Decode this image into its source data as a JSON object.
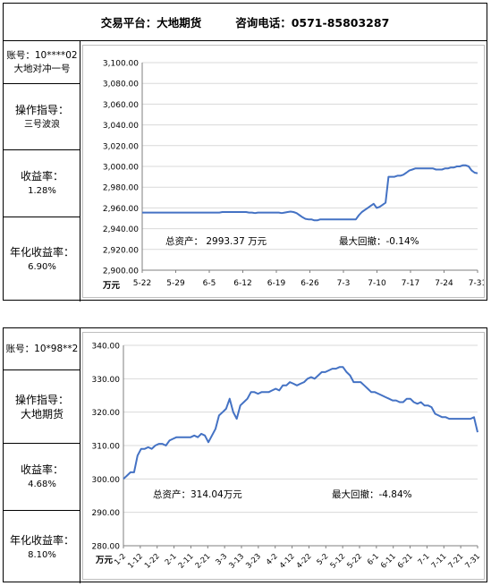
{
  "header": {
    "platform": "交易平台：大地期货",
    "phone": "咨询电话：0571-85803287"
  },
  "accounts": [
    {
      "account_label": "账号：10****02",
      "account_name": "大地对冲一号",
      "instruction_label": "操作指导：",
      "instruction_value": "三号波浪",
      "return_label": "收益率：",
      "return_value": "1.28%",
      "annual_label": "年化收益率：",
      "annual_value": "6.90%"
    },
    {
      "account_label": "账号：10*98**2",
      "account_name": "",
      "instruction_label": "操作指导：",
      "instruction_value": "大地期货",
      "return_label": "收益率：",
      "return_value": "4.68%",
      "annual_label": "年化收益率：",
      "annual_value": "8.10%"
    }
  ],
  "chart_data": [
    {
      "type": "line",
      "title": "",
      "xlabel": "",
      "ylabel": "万元",
      "ylim": [
        2900,
        3100
      ],
      "yticks": [
        2900,
        2920,
        2940,
        2960,
        2980,
        3000,
        3020,
        3040,
        3060,
        3080,
        3100
      ],
      "ytick_labels": [
        "2,900.00",
        "2,920.00",
        "2,940.00",
        "2,960.00",
        "2,980.00",
        "3,000.00",
        "3,020.00",
        "3,040.00",
        "3,060.00",
        "3,080.00",
        "3,100.00"
      ],
      "x_tick_labels": [
        "5-22",
        "5-29",
        "6-5",
        "6-12",
        "6-19",
        "6-26",
        "7-3",
        "7-10",
        "7-17",
        "7-24",
        "7-31"
      ],
      "grid": true,
      "line_color": "#4472C4",
      "series": [
        {
          "values": [
            2955.5,
            2955.5,
            2955.5,
            2955.5,
            2955.5,
            2955.5,
            2955.5,
            2955.5,
            2955.5,
            2955.5,
            2955.5,
            2955.5,
            2955.5,
            2955.5,
            2955.5,
            2955.5,
            2955.5,
            2955.5,
            2955.5,
            2955.5,
            2955.5,
            2955.5,
            2955.5,
            2955.5,
            2955.5,
            2955.5,
            2955.5,
            2956,
            2956,
            2956,
            2956,
            2956,
            2956,
            2956,
            2956,
            2956,
            2955.5,
            2955.5,
            2955,
            2955.5,
            2955.5,
            2955.5,
            2955.5,
            2955.5,
            2955.5,
            2955.5,
            2955.5,
            2955,
            2955.5,
            2956,
            2956.5,
            2956,
            2955,
            2953,
            2951,
            2949.5,
            2949,
            2949,
            2948,
            2948,
            2949,
            2949,
            2949,
            2949,
            2949,
            2949,
            2949,
            2949,
            2949,
            2949,
            2949,
            2949,
            2949,
            2953,
            2956,
            2958,
            2960,
            2962,
            2964,
            2960,
            2961,
            2963,
            2965,
            2990,
            2990,
            2990,
            2991,
            2991,
            2992,
            2994,
            2996,
            2997,
            2998,
            2998,
            2998,
            2998,
            2998,
            2998,
            2998,
            2997,
            2997,
            2997,
            2998,
            2998,
            2999,
            2999,
            3000,
            3000,
            3001,
            3001,
            3000,
            2996,
            2994,
            2993.4
          ]
        }
      ],
      "annotations": {
        "total_label": "总资产： 2993.37 万元",
        "drawdown_label": "最大回撤：-0.14%"
      }
    },
    {
      "type": "line",
      "title": "",
      "xlabel": "",
      "ylabel": "万元",
      "ylim": [
        280,
        340
      ],
      "yticks": [
        280,
        290,
        300,
        310,
        320,
        330,
        340
      ],
      "ytick_labels": [
        "280.00",
        "290.00",
        "300.00",
        "310.00",
        "320.00",
        "330.00",
        "340.00"
      ],
      "x_tick_labels": [
        "1-2",
        "1-12",
        "1-22",
        "2-1",
        "2-11",
        "2-21",
        "3-3",
        "3-13",
        "3-23",
        "4-2",
        "4-12",
        "4-22",
        "5-2",
        "5-12",
        "5-22",
        "6-1",
        "6-11",
        "6-21",
        "7-1",
        "7-11",
        "7-21",
        "7-31"
      ],
      "grid": true,
      "line_color": "#4472C4",
      "series": [
        {
          "values": [
            300,
            301,
            302,
            302,
            307,
            309,
            309,
            309.5,
            309,
            310,
            310.5,
            310.5,
            310,
            311.5,
            312,
            312.5,
            312.5,
            312.5,
            312.5,
            312.5,
            313,
            312.5,
            313.5,
            313,
            311,
            313,
            315,
            319,
            320,
            321,
            324,
            320,
            318,
            322,
            323,
            324,
            326,
            326,
            325.5,
            326,
            326,
            326,
            326.5,
            327,
            326.5,
            328,
            328,
            329,
            328.5,
            328,
            328.5,
            329,
            330,
            330.5,
            330,
            331,
            332,
            332,
            332.5,
            333,
            333,
            333.5,
            333.5,
            332,
            331,
            329,
            329,
            329,
            328,
            327,
            326,
            326,
            325.5,
            325,
            324.5,
            324,
            323.5,
            323.5,
            323,
            323,
            324,
            324,
            323,
            322.5,
            323,
            322,
            322,
            321.5,
            319.5,
            319,
            318.5,
            318.5,
            318,
            318,
            318,
            318,
            318,
            318,
            318,
            318.5,
            314
          ]
        }
      ],
      "annotations": {
        "total_label": "总资产：314.04万元",
        "drawdown_label": "最大回撤：-4.84%"
      }
    }
  ]
}
